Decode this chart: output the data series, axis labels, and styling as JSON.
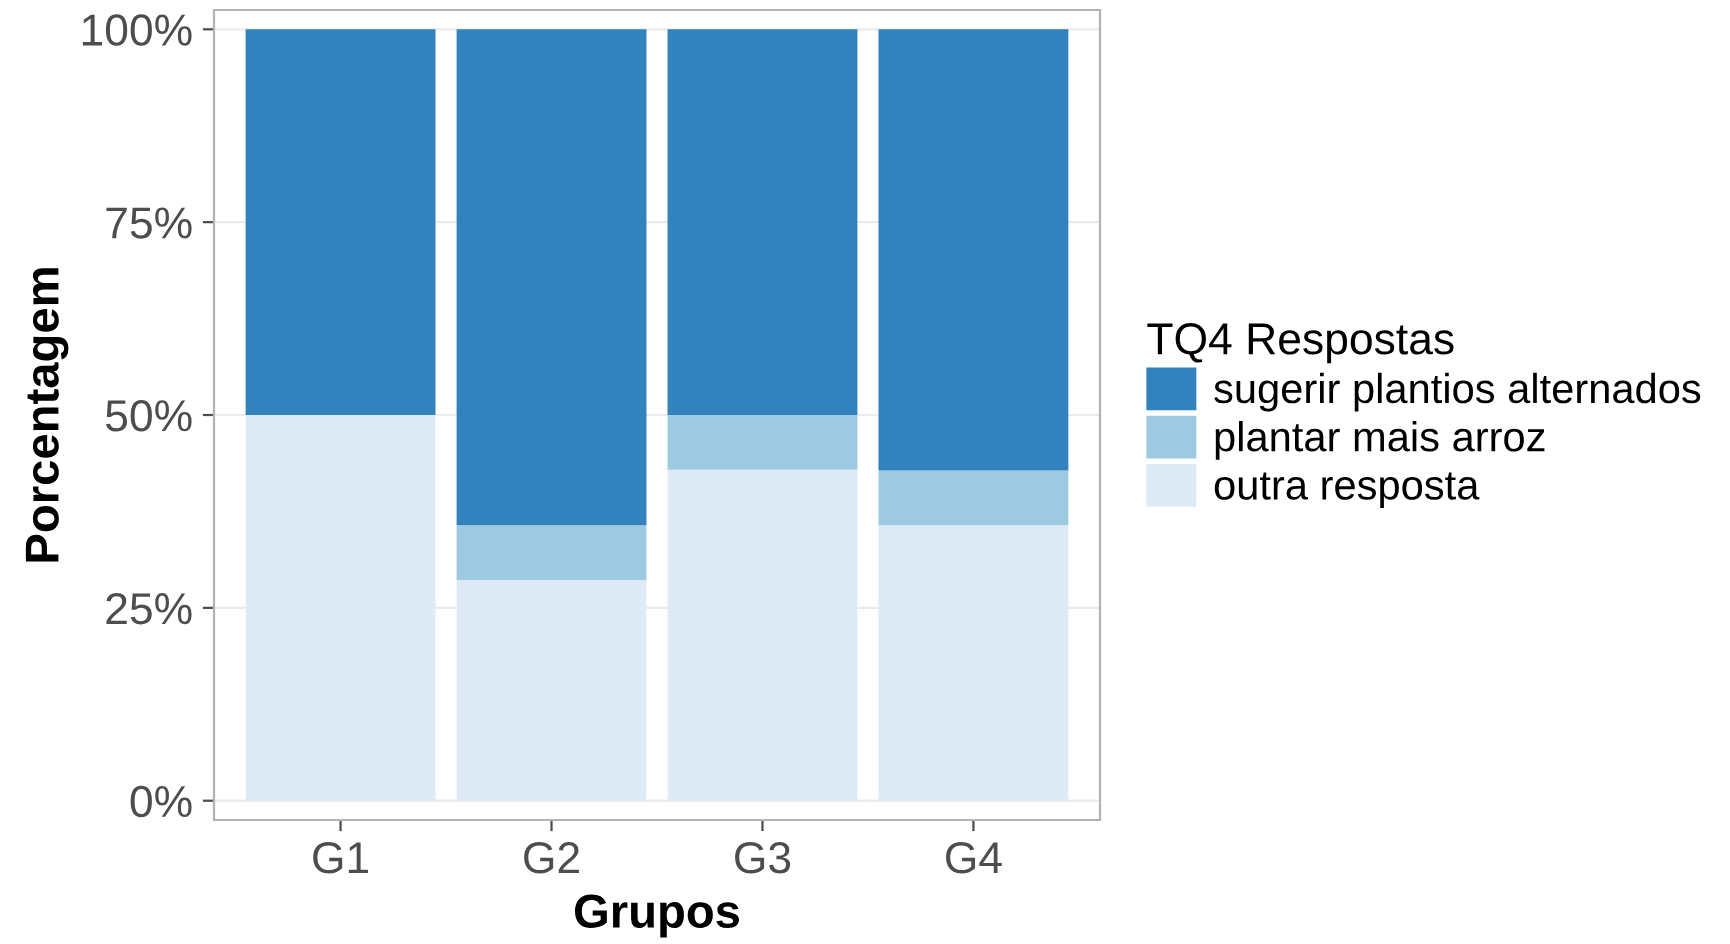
{
  "chart_data": {
    "type": "bar",
    "stacked": true,
    "xlabel": "Grupos",
    "ylabel": "Porcentagem",
    "legend_title": "TQ4 Respostas",
    "categories": [
      "G1",
      "G2",
      "G3",
      "G4"
    ],
    "series": [
      {
        "name": "outra resposta",
        "color": "#deebf7",
        "values": [
          50,
          28.6,
          42.9,
          35.7
        ]
      },
      {
        "name": "plantar mais arroz",
        "color": "#9ecae1",
        "values": [
          0,
          7.1,
          7.1,
          7.1
        ]
      },
      {
        "name": "sugerir plantios alternados",
        "color": "#3182bd",
        "values": [
          50,
          64.3,
          50,
          57.2
        ]
      }
    ],
    "ylim": [
      -2.5,
      102.5
    ],
    "yticks": [
      {
        "value": 0,
        "label": "0%"
      },
      {
        "value": 25,
        "label": "25%"
      },
      {
        "value": 50,
        "label": "50%"
      },
      {
        "value": 75,
        "label": "75%"
      },
      {
        "value": 100,
        "label": "100%"
      }
    ],
    "grid": "y",
    "legend": "right"
  }
}
